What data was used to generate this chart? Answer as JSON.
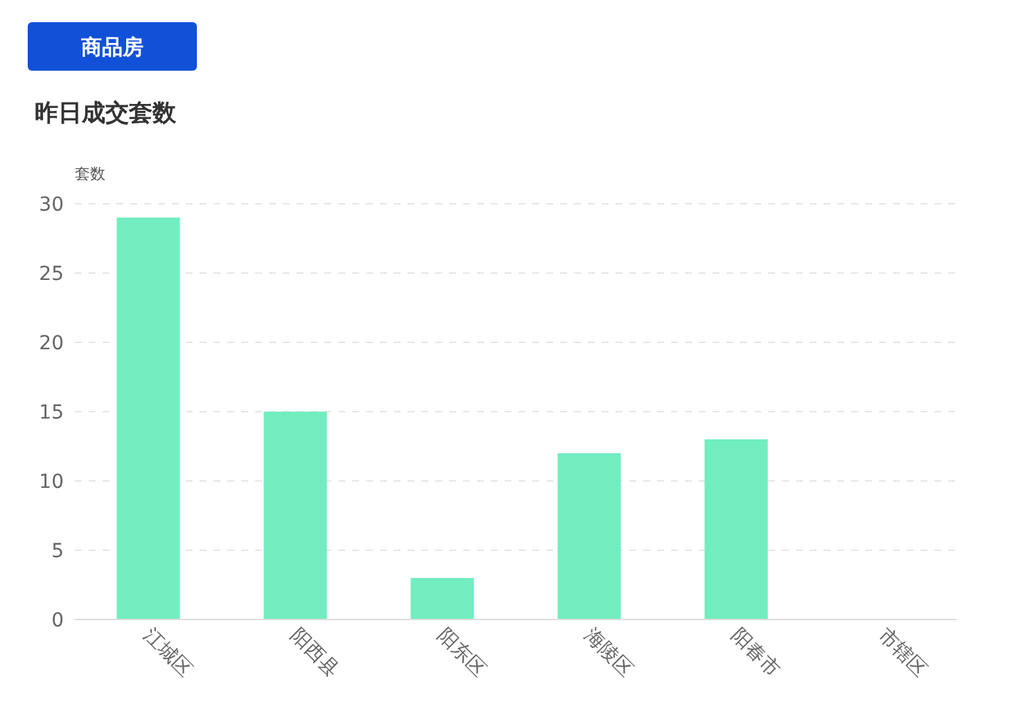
{
  "chart_data": {
    "type": "bar",
    "subtitle": "商品房",
    "title": "昨日成交套数",
    "ylabel": "套数",
    "categories": [
      "江城区",
      "阳西县",
      "阳东区",
      "海陵区",
      "阳春市",
      "市辖区"
    ],
    "values": [
      29,
      15,
      3,
      12,
      13,
      0
    ],
    "color": "#72edc0",
    "ylim": [
      0,
      30
    ],
    "yticks": [
      0,
      5,
      10,
      15,
      20,
      25,
      30
    ],
    "grid": "y"
  }
}
